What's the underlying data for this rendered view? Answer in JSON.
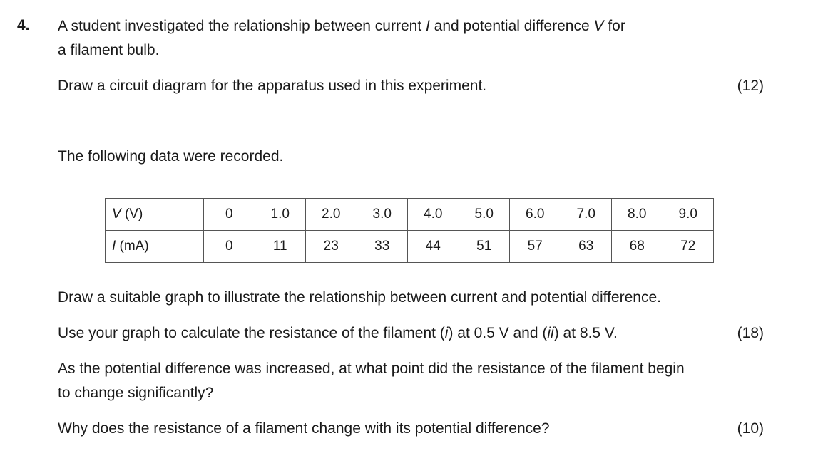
{
  "question": {
    "number": "4.",
    "intro_line1_pre": "A student investigated the relationship between current ",
    "intro_I": "I",
    "intro_line1_mid": " and potential difference ",
    "intro_V": "V",
    "intro_line1_post": " for",
    "intro_line2": "a filament bulb.",
    "part1": "Draw a circuit diagram for the apparatus used in this experiment.",
    "part1_marks": "(12)",
    "data_intro": "The following data were recorded.",
    "table": {
      "row_v_symbol": "V",
      "row_v_unit": " (V)",
      "row_i_symbol": "I",
      "row_i_unit": " (mA)",
      "v_values": [
        "0",
        "1.0",
        "2.0",
        "3.0",
        "4.0",
        "5.0",
        "6.0",
        "7.0",
        "8.0",
        "9.0"
      ],
      "i_values": [
        "0",
        "11",
        "23",
        "33",
        "44",
        "51",
        "57",
        "63",
        "68",
        "72"
      ]
    },
    "part2": "Draw a suitable graph to illustrate the relationship between current and potential difference.",
    "part3_pre": "Use your graph to calculate the resistance of the filament (",
    "part3_i": "i",
    "part3_mid": ") at 0.5 V and (",
    "part3_ii": "ii",
    "part3_post": ") at 8.5 V.",
    "part3_marks": "(18)",
    "part4_line1": "As the potential difference was increased, at what point did the resistance of the filament begin",
    "part4_line2": "to change significantly?",
    "part5": "Why does the resistance of a filament change with its potential difference?",
    "part5_marks": "(10)"
  }
}
